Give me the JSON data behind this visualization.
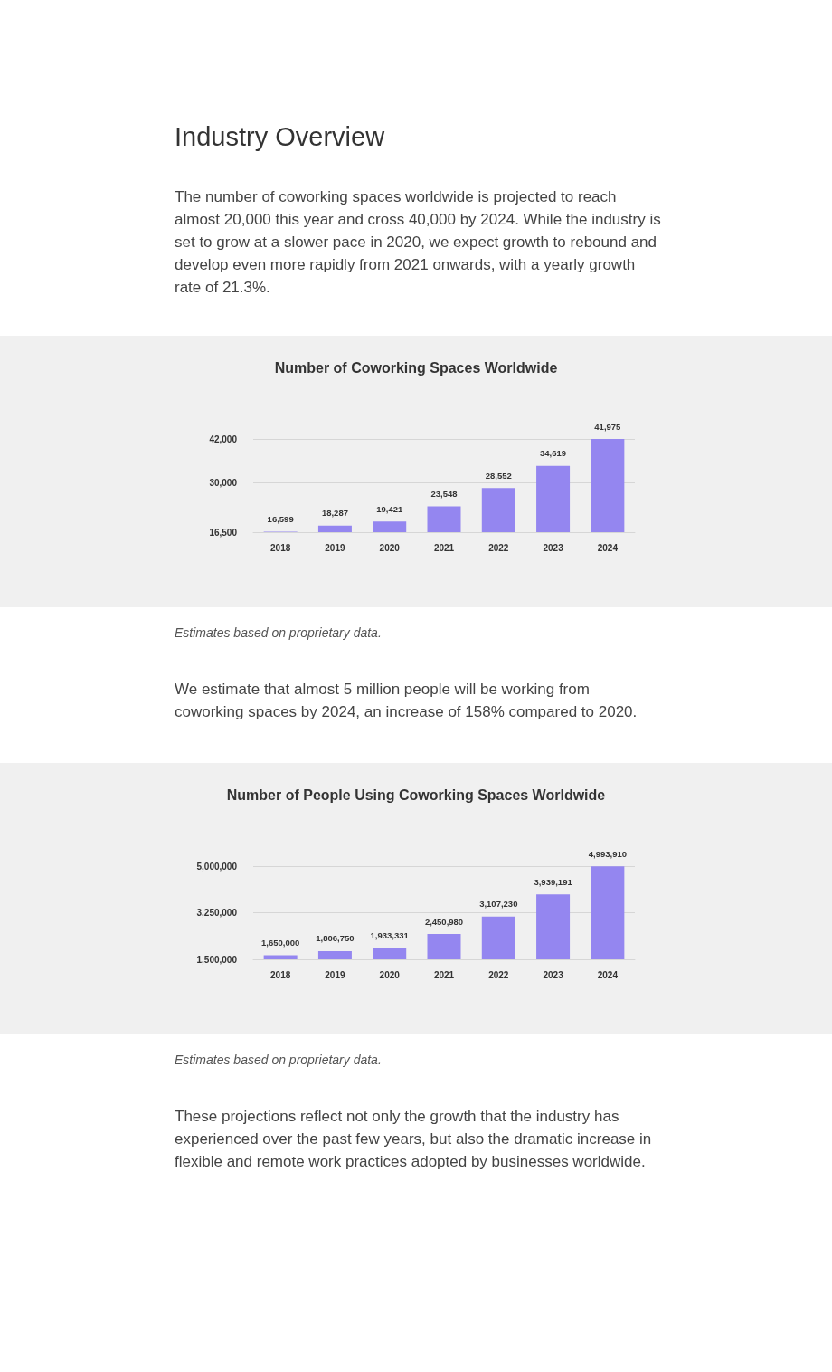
{
  "chart_data": [
    {
      "type": "other",
      "title": "Industry Overview",
      "annotations": [
        "The number of coworking spaces worldwide is projected to reach almost 20,000 this year and cross 40,000 by 2024. While the industry is set to grow at a slower pace in 2020, we expect growth to rebound and develop even more rapidly from 2021 onwards, with a yearly growth rate of 21.3%."
      ]
    },
    {
      "type": "bar",
      "title": "Number of Coworking Spaces Worldwide",
      "categories": [
        "2018",
        "2019",
        "2020",
        "2021",
        "2022",
        "2023",
        "2024"
      ],
      "values": [
        16599,
        18287,
        19421,
        23548,
        28552,
        34619,
        41975
      ],
      "value_labels": [
        "16,599",
        "18,287",
        "19,421",
        "23,548",
        "28,552",
        "34,619",
        "41,975"
      ],
      "color": "#9486f0",
      "ylim": [
        16500,
        42000
      ],
      "yticks": [
        {
          "value": 16500,
          "label": "16,500"
        },
        {
          "value": 30000,
          "label": "30,000"
        },
        {
          "value": 42000,
          "label": "42,000"
        }
      ],
      "grid": "y",
      "annotations": [
        "Estimates based on proprietary data.",
        "We estimate that almost 5 million people will be working from coworking spaces by 2024, an increase of 158% compared to 2020."
      ]
    },
    {
      "type": "bar",
      "title": "Number of People Using Coworking Spaces Worldwide",
      "categories": [
        "2018",
        "2019",
        "2020",
        "2021",
        "2022",
        "2023",
        "2024"
      ],
      "values": [
        1650000,
        1806750,
        1933331,
        2450980,
        3107230,
        3939191,
        4993910
      ],
      "value_labels": [
        "1,650,000",
        "1,806,750",
        "1,933,331",
        "2,450,980",
        "3,107,230",
        "3,939,191",
        "4,993,910"
      ],
      "color": "#9486f0",
      "ylim": [
        1500000,
        5000000
      ],
      "yticks": [
        {
          "value": 1500000,
          "label": "1,500,000"
        },
        {
          "value": 3250000,
          "label": "3,250,000"
        },
        {
          "value": 5000000,
          "label": "5,000,000"
        }
      ],
      "grid": "y",
      "annotations": [
        "Estimates based on proprietary data.",
        "These projections reflect not only the growth that the industry has experienced over the past few years, but also the dramatic increase in flexible and remote work practices adopted by businesses worldwide."
      ]
    }
  ]
}
